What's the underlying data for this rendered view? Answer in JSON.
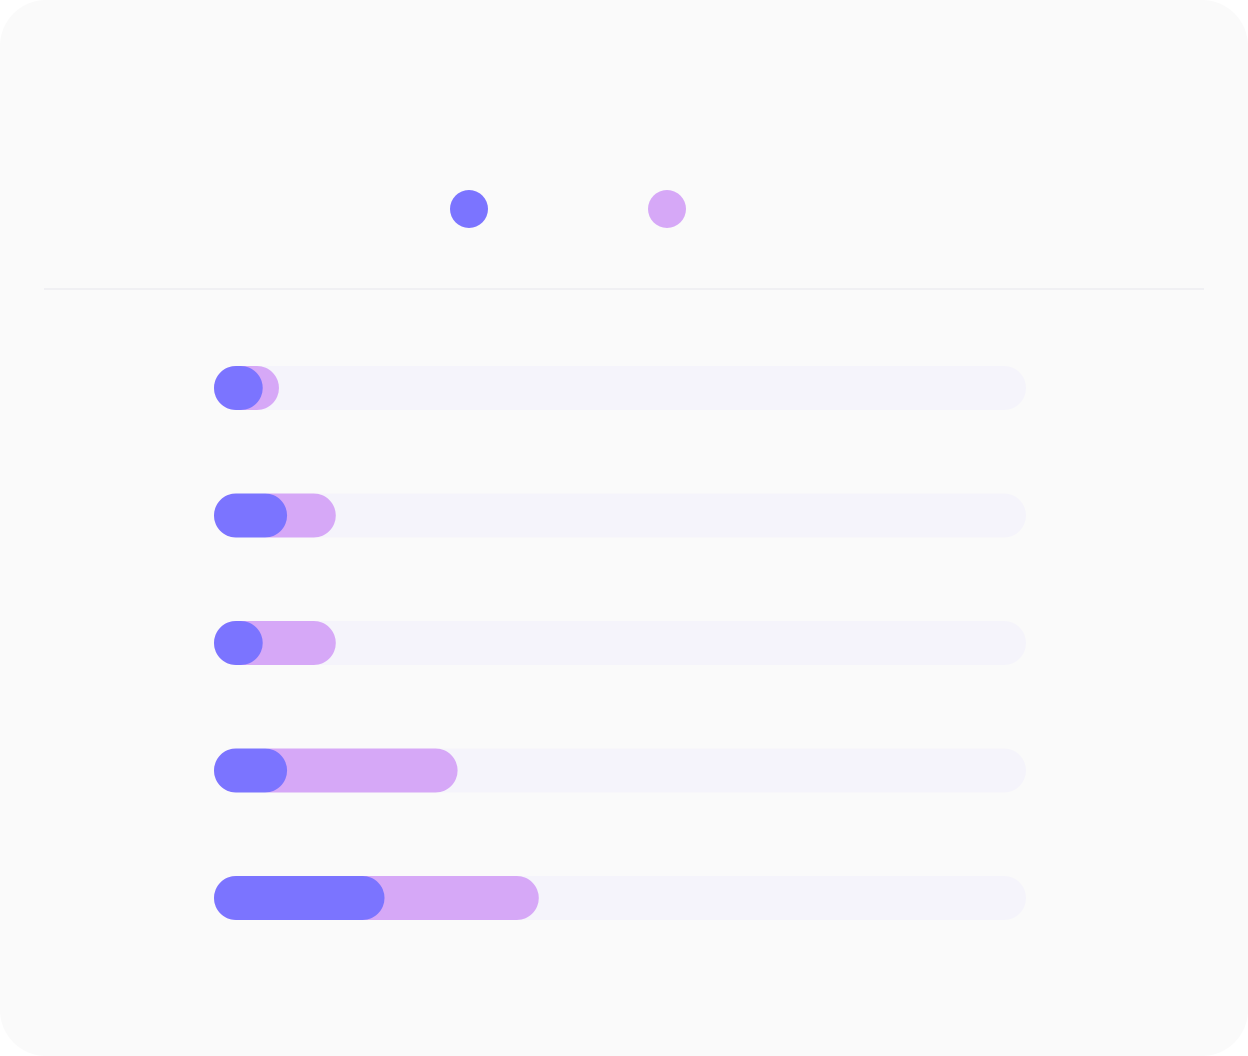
{
  "header": {
    "left_title": "",
    "right_title": ""
  },
  "legend": {
    "items": [
      {
        "label": "",
        "color": "#7b74ff"
      },
      {
        "label": "",
        "color": "#d6a8f7"
      }
    ]
  },
  "chart_data": {
    "type": "bar",
    "orientation": "horizontal",
    "stacked": true,
    "title": "",
    "xlabel": "",
    "ylabel": "",
    "categories": [
      "",
      "",
      "",
      "",
      ""
    ],
    "series": [
      {
        "values": [
          6,
          9,
          6,
          9,
          21
        ],
        "color": "#7b74ff"
      },
      {
        "values": [
          2,
          6,
          9,
          21,
          19
        ],
        "color": "#d6a8f7"
      }
    ],
    "value_labels": [
      "",
      "",
      "",
      "",
      ""
    ],
    "xlim": [
      0,
      100
    ],
    "track_color": "#f5f4fb",
    "grid": false,
    "legend_position": "top-center"
  }
}
